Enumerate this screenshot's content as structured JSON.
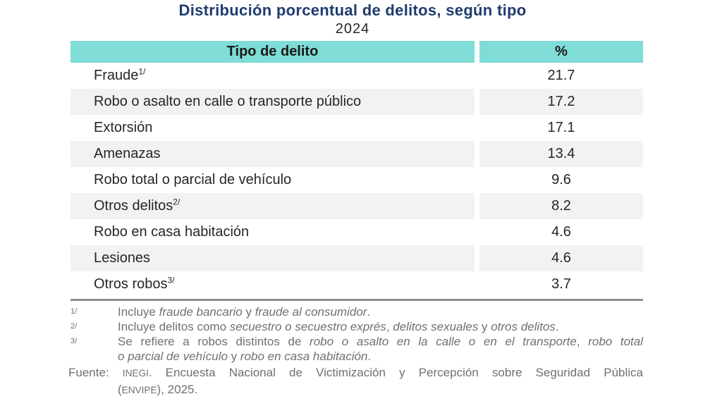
{
  "title": "Distribución porcentual de delitos, según tipo",
  "subtitle": "2024",
  "colors": {
    "header_bg": "#7FDCD6",
    "stripe_bg": "#F2F2F2",
    "title_color": "#1F3C6E",
    "body_text": "#262626",
    "note_text": "#707070",
    "rule_color": "#8E8E8E"
  },
  "table": {
    "headers": [
      "Tipo de delito",
      "%"
    ],
    "rows": [
      {
        "label": "Fraude",
        "sup": "1/",
        "value": "21.7"
      },
      {
        "label": "Robo o asalto en calle o transporte público",
        "sup": "",
        "value": "17.2"
      },
      {
        "label": "Extorsión",
        "sup": "",
        "value": "17.1"
      },
      {
        "label": "Amenazas",
        "sup": "",
        "value": "13.4"
      },
      {
        "label": "Robo total o parcial de vehículo",
        "sup": "",
        "value": "9.6"
      },
      {
        "label": "Otros delitos",
        "sup": "2/",
        "value": "8.2"
      },
      {
        "label": "Robo en casa habitación",
        "sup": "",
        "value": "4.6"
      },
      {
        "label": "Lesiones",
        "sup": "",
        "value": "4.6"
      },
      {
        "label": "Otros robos",
        "sup": "3/",
        "value": "3.7"
      }
    ]
  },
  "footnotes": [
    {
      "marker": "1/",
      "line1": [
        {
          "t": "Incluye "
        },
        {
          "t": "fraude bancario",
          "i": true
        },
        {
          "t": " y "
        },
        {
          "t": "fraude al consumidor",
          "i": true
        },
        {
          "t": "."
        }
      ]
    },
    {
      "marker": "2/",
      "line1": [
        {
          "t": "Incluye delitos como "
        },
        {
          "t": "secuestro o secuestro exprés",
          "i": true
        },
        {
          "t": ", "
        },
        {
          "t": "delitos sexuales",
          "i": true
        },
        {
          "t": " y "
        },
        {
          "t": "otros delitos",
          "i": true
        },
        {
          "t": "."
        }
      ]
    },
    {
      "marker": "3/",
      "line1": [
        {
          "t": "Se refiere a robos distintos de "
        },
        {
          "t": "robo o asalto en la calle o en el transporte",
          "i": true
        },
        {
          "t": ", "
        },
        {
          "t": "robo total",
          "i": true
        }
      ],
      "line2": [
        {
          "t": "o parcial de vehículo",
          "i": true
        },
        {
          "t": " y "
        },
        {
          "t": "robo en casa habitación",
          "i": true
        },
        {
          "t": "."
        }
      ]
    }
  ],
  "source": {
    "line1": [
      {
        "t": "Fuente: "
      },
      {
        "t": "INEGI",
        "sc": true
      },
      {
        "t": ". Encuesta Nacional de Victimización y Percepción sobre Seguridad Pública"
      }
    ],
    "line2": [
      {
        "t": "("
      },
      {
        "t": "ENVIPE",
        "sc": true
      },
      {
        "t": "), 2025."
      }
    ]
  },
  "chart_data": {
    "type": "table",
    "title": "Distribución porcentual de delitos, según tipo",
    "subtitle": "2024",
    "columns": [
      "Tipo de delito",
      "%"
    ],
    "categories": [
      "Fraude",
      "Robo o asalto en calle o transporte público",
      "Extorsión",
      "Amenazas",
      "Robo total o parcial de vehículo",
      "Otros delitos",
      "Robo en casa habitación",
      "Lesiones",
      "Otros robos"
    ],
    "values": [
      21.7,
      17.2,
      17.1,
      13.4,
      9.6,
      8.2,
      4.6,
      4.6,
      3.7
    ]
  }
}
